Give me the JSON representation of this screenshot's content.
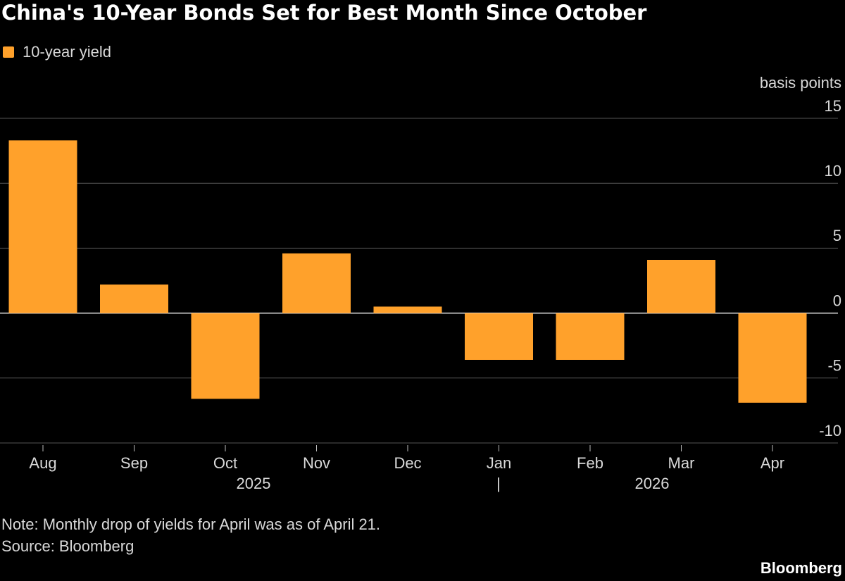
{
  "chart_data": {
    "type": "bar",
    "title": "China's 10-Year Bonds Set for Best Month Since October",
    "y_axis_label": "basis points",
    "categories": [
      "Aug",
      "Sep",
      "Oct",
      "Nov",
      "Dec",
      "Jan",
      "Feb",
      "Mar",
      "Apr"
    ],
    "year_labels": [
      "2025",
      "2026"
    ],
    "series": [
      {
        "name": "10-year yield",
        "color": "#ffa12b",
        "values": [
          13.3,
          2.2,
          -6.6,
          4.6,
          0.5,
          -3.6,
          -3.6,
          4.1,
          -6.9
        ]
      }
    ],
    "ylim": [
      -10,
      15
    ],
    "yticks": [
      -10,
      -5,
      0,
      5,
      10,
      15
    ],
    "grid": true,
    "note": "Note: Monthly drop of yields for April was as of April 21.",
    "source": "Source: Bloomberg",
    "logo": "Bloomberg"
  }
}
